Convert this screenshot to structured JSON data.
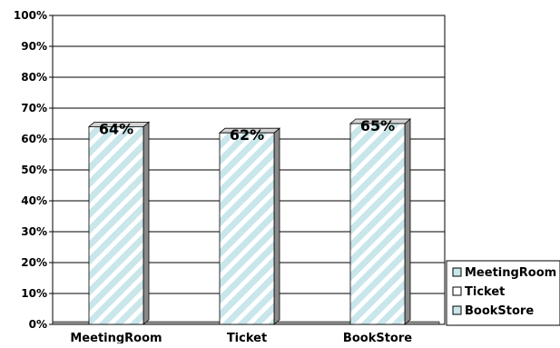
{
  "chart_data": {
    "type": "bar",
    "categories": [
      "MeetingRoom",
      "Ticket",
      "BookStore"
    ],
    "values": [
      64,
      62,
      65
    ],
    "data_labels": [
      "64%",
      "62%",
      "65%"
    ],
    "y_ticks": [
      "0%",
      "10%",
      "20%",
      "30%",
      "40%",
      "50%",
      "60%",
      "70%",
      "80%",
      "90%",
      "100%"
    ],
    "ylim": [
      0,
      100
    ],
    "grid": true,
    "legend": {
      "position": "bottom-right",
      "entries": [
        "MeetingRoom",
        "Ticket",
        "BookStore"
      ]
    },
    "colors": {
      "bar_fill": "#c9e6ea",
      "bar_stripe": "#ffffff",
      "bar_side": "#8a8a8a",
      "bar_top": "#d4d4d4",
      "grid": "#000000"
    }
  }
}
